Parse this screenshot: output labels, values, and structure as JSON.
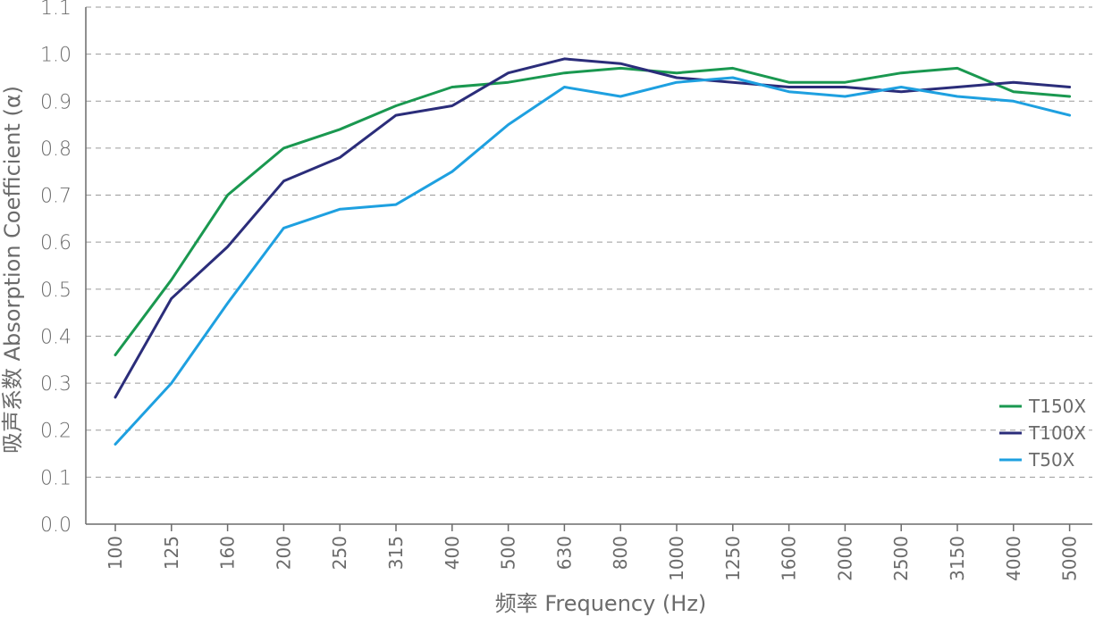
{
  "chart_data": {
    "type": "line",
    "xlabel": "频率 Frequency (Hz)",
    "ylabel": "吸声系数 Absorption Coefficient (α)",
    "categories": [
      "100",
      "125",
      "160",
      "200",
      "250",
      "315",
      "400",
      "500",
      "630",
      "800",
      "1000",
      "1250",
      "1600",
      "2000",
      "2500",
      "3150",
      "4000",
      "5000"
    ],
    "y_ticks": [
      "0.0",
      "0.1",
      "0.2",
      "0.3",
      "0.4",
      "0.5",
      "0.6",
      "0.7",
      "0.8",
      "0.9",
      "1.0",
      "1.1"
    ],
    "ylim": [
      0,
      1.1
    ],
    "grid": "horizontal dashed",
    "legend_position": "bottom-right",
    "series": [
      {
        "name": "T150X",
        "color": "#1a9850",
        "values": [
          0.36,
          0.52,
          0.7,
          0.8,
          0.84,
          0.89,
          0.93,
          0.94,
          0.96,
          0.97,
          0.96,
          0.97,
          0.94,
          0.94,
          0.96,
          0.97,
          0.92,
          0.91
        ]
      },
      {
        "name": "T100X",
        "color": "#2b2d7a",
        "values": [
          0.27,
          0.48,
          0.59,
          0.73,
          0.78,
          0.87,
          0.89,
          0.96,
          0.99,
          0.98,
          0.95,
          0.94,
          0.93,
          0.93,
          0.92,
          0.93,
          0.94,
          0.93
        ]
      },
      {
        "name": "T50X",
        "color": "#1ea0e0",
        "values": [
          0.17,
          0.3,
          0.47,
          0.63,
          0.67,
          0.68,
          0.75,
          0.85,
          0.93,
          0.91,
          0.94,
          0.95,
          0.92,
          0.91,
          0.93,
          0.91,
          0.9,
          0.87
        ]
      }
    ]
  }
}
